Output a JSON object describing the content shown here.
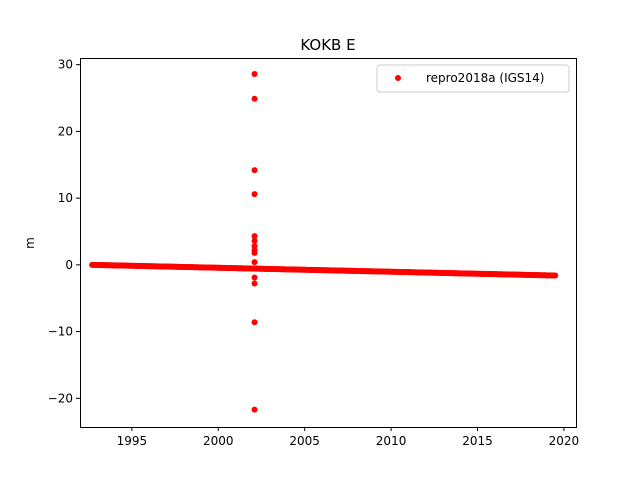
{
  "chart_data": {
    "type": "scatter",
    "title": "KOKB E",
    "xlabel": "",
    "ylabel": "m",
    "xlim": [
      1992.0,
      2020.7
    ],
    "ylim": [
      -24.3,
      31.0
    ],
    "xticks": [
      1995,
      2000,
      2005,
      2010,
      2015,
      2020
    ],
    "yticks": [
      -20,
      -10,
      0,
      10,
      20,
      30
    ],
    "ytick_labels": [
      "−20",
      "−10",
      "0",
      "10",
      "20",
      "30"
    ],
    "grid": false,
    "legend_position": "top-right",
    "series": [
      {
        "name": "repro2018a (IGS14)",
        "color": "#ff0000",
        "marker": "circle",
        "trend": {
          "x_start": 1992.7,
          "y_start": 0.0,
          "x_end": 2019.5,
          "y_end": -1.6,
          "step_years": 0.05
        },
        "outliers": [
          {
            "x": 2002.1,
            "y": 28.6
          },
          {
            "x": 2002.1,
            "y": 24.9
          },
          {
            "x": 2002.1,
            "y": 14.2
          },
          {
            "x": 2002.1,
            "y": 10.6
          },
          {
            "x": 2002.1,
            "y": 4.3
          },
          {
            "x": 2002.1,
            "y": 3.6
          },
          {
            "x": 2002.1,
            "y": 2.8
          },
          {
            "x": 2002.1,
            "y": 2.2
          },
          {
            "x": 2002.1,
            "y": 1.8
          },
          {
            "x": 2002.1,
            "y": 0.4
          },
          {
            "x": 2002.1,
            "y": -1.9
          },
          {
            "x": 2002.1,
            "y": -2.8
          },
          {
            "x": 2002.1,
            "y": -8.6
          },
          {
            "x": 2002.1,
            "y": -21.7
          }
        ]
      }
    ]
  }
}
